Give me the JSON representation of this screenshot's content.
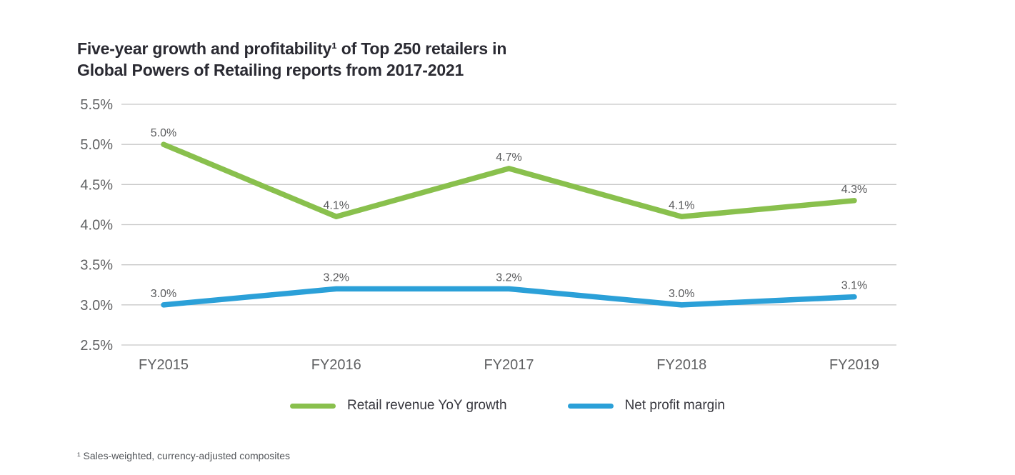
{
  "title_lines": [
    "Five-year growth and profitability¹ of Top 250 retailers in",
    "Global Powers of Retailing reports from 2017-2021"
  ],
  "footnote": "¹ Sales-weighted, currency-adjusted composites",
  "chart_data": {
    "type": "line",
    "title": "Five-year growth and profitability¹ of Top 250 retailers in Global Powers of Retailing reports from 2017-2021",
    "categories": [
      "FY2015",
      "FY2016",
      "FY2017",
      "FY2018",
      "FY2019"
    ],
    "series": [
      {
        "name": "Retail revenue YoY growth",
        "color": "#89C04D",
        "values": [
          5.0,
          4.1,
          4.7,
          4.1,
          4.3
        ],
        "value_labels": [
          "5.0%",
          "4.1%",
          "4.7%",
          "4.1%",
          "4.3%"
        ]
      },
      {
        "name": "Net profit margin",
        "color": "#2BA0D8",
        "values": [
          3.0,
          3.2,
          3.2,
          3.0,
          3.1
        ],
        "value_labels": [
          "3.0%",
          "3.2%",
          "3.2%",
          "3.0%",
          "3.1%"
        ]
      }
    ],
    "y_tick_values": [
      5.5,
      5.0,
      4.5,
      4.0,
      3.5,
      3.0,
      2.5
    ],
    "y_tick_labels": [
      "5.5%",
      "5.0%",
      "4.5%",
      "4.0%",
      "3.5%",
      "3.0%",
      "2.5%"
    ],
    "ylim": [
      2.5,
      5.5
    ],
    "xlabel": "",
    "ylabel": "",
    "grid": true,
    "legend_position": "bottom"
  },
  "colors": {
    "background": "#FFFFFF",
    "grid_line": "#C8C8C8",
    "axis_text": "#5F6062",
    "data_label_text": "#58595B",
    "title_text": "#2A2A32",
    "legend_text": "#37373E",
    "footnote_text": "#53565A"
  }
}
